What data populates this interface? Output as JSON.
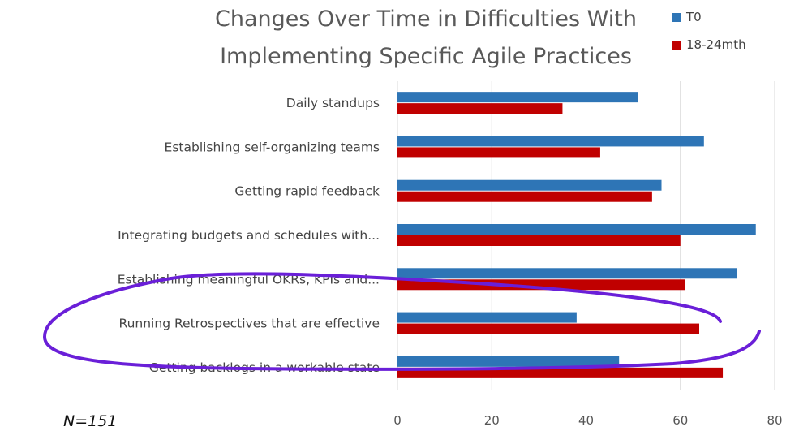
{
  "chart_data": {
    "type": "bar",
    "orientation": "horizontal",
    "title_lines": [
      "Changes Over Time in Difficulties With",
      "Implementing Specific Agile Practices"
    ],
    "categories": [
      "Daily standups",
      "Establishing self-organizing teams",
      "Getting rapid feedback",
      "Integrating budgets and schedules with...",
      "Establishing meaningful OKRs, KPIs and...",
      "Running Retrospectives that are effective",
      "Getting backlogs in a workable state"
    ],
    "series": [
      {
        "name": "T0",
        "color": "#2e75b6",
        "values": [
          51,
          65,
          56,
          76,
          72,
          38,
          47
        ]
      },
      {
        "name": "18-24mth",
        "color": "#c00000",
        "values": [
          35,
          43,
          54,
          60,
          61,
          64,
          69
        ]
      }
    ],
    "xlim": [
      0,
      80
    ],
    "xticks": [
      0,
      20,
      40,
      60,
      80
    ],
    "grid": true,
    "legend_position": "top-right",
    "annotation": "N=151",
    "highlight": {
      "category": "Running Retrospectives that are effective",
      "color": "#6a1fd8",
      "style": "hand-drawn-circle"
    }
  }
}
